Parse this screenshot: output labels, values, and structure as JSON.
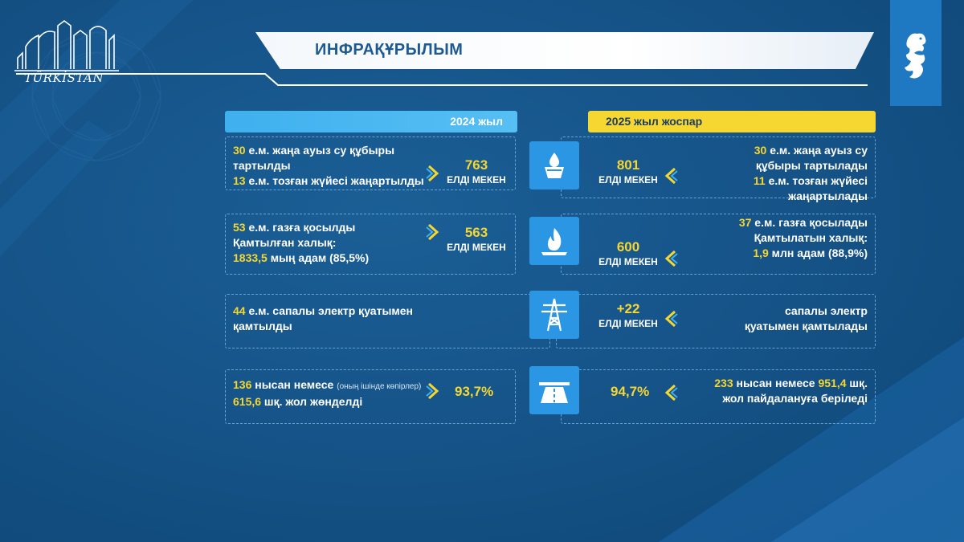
{
  "header": {
    "logo_text": "TÜRKİSTAN",
    "title": "ИНФРАҚҰРЫЛЫМ"
  },
  "columns": {
    "left_label": "2024 жыл",
    "right_label": "2025 жыл жоспар"
  },
  "rows": [
    {
      "icon": "water-tap-icon",
      "left": {
        "line1_num": "30",
        "line1_text": " е.м. жаңа ауыз су құбыры",
        "line2_text": "тартылды",
        "line3_num": "13",
        "line3_text": " е.м. тозған жүйесі жаңартылды"
      },
      "left_value": "763",
      "left_value_label": "ЕЛДІ МЕКЕН",
      "right_value": "801",
      "right_value_label": "ЕЛДІ МЕКЕН",
      "right": {
        "line1_num": "30",
        "line1_text": " е.м. жаңа ауыз су",
        "line2_text": "құбыры тартылады",
        "line3_num": "11",
        "line3_text": " е.м. тозған жүйесі жаңартылады"
      }
    },
    {
      "icon": "gas-flame-icon",
      "left": {
        "line1_num": "53",
        "line1_text": " е.м. газға қосылды",
        "line2_text": "Қамтылған халық:",
        "line3_num": "1833,5",
        "line3_text": " мың адам (85,5%)"
      },
      "left_value": "563",
      "left_value_label": "ЕЛДІ МЕКЕН",
      "right_value": "600",
      "right_value_label": "ЕЛДІ МЕКЕН",
      "right": {
        "line1_num": "37",
        "line1_text": " е.м. газға қосылады",
        "line2_text": "Қамтылатын халық:",
        "line3_num": "1,9",
        "line3_text": " млн адам (88,9%)"
      }
    },
    {
      "icon": "power-tower-icon",
      "left": {
        "line1_num": "44",
        "line1_text": " е.м. сапалы электр қуатымен",
        "line2_text": "қамтылды"
      },
      "right_value": "+22",
      "right_value_label": "ЕЛДІ МЕКЕН",
      "right": {
        "line1_text": "сапалы электр",
        "line2_text": "қуатымен қамтылады"
      }
    },
    {
      "icon": "road-icon",
      "left": {
        "line1_num": "136",
        "line1_text": " нысан немесе ",
        "line1_small": "(оның ішінде көпірлер)",
        "line2_num": "615,6",
        "line2_text": " шқ. жол жөнделді"
      },
      "left_value": "93,7%",
      "right_value": "94,7%",
      "right": {
        "line1_num": "233",
        "line1_text": " нысан немесе ",
        "line1_num2": "951,4",
        "line1_text2": " шқ.",
        "line2_text": "жол пайдалануға беріледі"
      }
    }
  ]
}
